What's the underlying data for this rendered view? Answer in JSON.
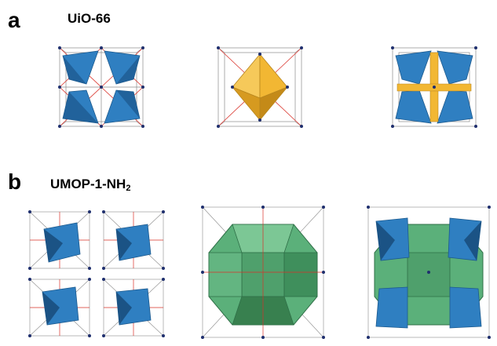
{
  "panel_a": {
    "letter": "a",
    "title": "UiO-66",
    "images": [
      {
        "label": "uio66-tetrahedral-cages"
      },
      {
        "label": "uio66-octahedral-cage"
      },
      {
        "label": "uio66-combined-cages"
      }
    ]
  },
  "panel_b": {
    "letter": "b",
    "title_main": "UMOP-1-NH",
    "title_sub": "2",
    "images": [
      {
        "label": "umop-tetrahedral-cages"
      },
      {
        "label": "umop-large-cage"
      },
      {
        "label": "umop-combined-cages"
      }
    ]
  },
  "colors": {
    "tetra_blue": "#2f7fc1",
    "octa_yellow": "#f2b733",
    "cage_green": "#5bb07a",
    "linker_gray": "#8c8c8c",
    "bond_red": "#d9322a",
    "node_navy": "#1f2f6e"
  }
}
